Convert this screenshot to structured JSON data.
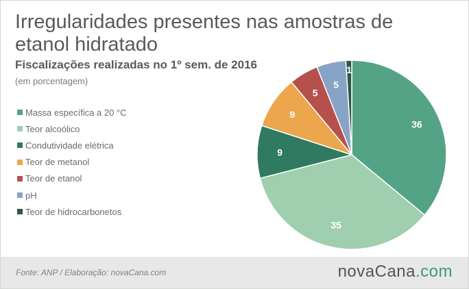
{
  "title": "Irregularidades presentes nas amostras de etanol hidratado",
  "subtitle": "Fiscalizações realizadas no 1º sem. de 2016",
  "note": "(em porcentagem)",
  "footer": {
    "source": "Fonte: ANP / Elaboração:  novaCana.com",
    "logo_main": "novaCana",
    "logo_dot": ".",
    "logo_tld": "com"
  },
  "chart_data": {
    "type": "pie",
    "title": "Irregularidades presentes nas amostras de etanol hidratado",
    "subtitle": "Fiscalizações realizadas no 1º sem. de 2016",
    "unit": "(em porcentagem)",
    "legend_position": "left",
    "slices": [
      {
        "label": "Massa específica a 20 °C",
        "value": 36,
        "color": "#55a387"
      },
      {
        "label": "Teor alcoólico",
        "value": 35,
        "color": "#9fcfae"
      },
      {
        "label": "Condutividade elétrica",
        "value": 9,
        "color": "#2f7a60"
      },
      {
        "label": "Teor de metanol",
        "value": 9,
        "color": "#eca64d"
      },
      {
        "label": "Teor de etanol",
        "value": 5,
        "color": "#b5504c"
      },
      {
        "label": "pH",
        "value": 5,
        "color": "#87a4c6"
      },
      {
        "label": "Teor de hidrocarbonetos",
        "value": 1,
        "color": "#2c5747"
      }
    ]
  }
}
